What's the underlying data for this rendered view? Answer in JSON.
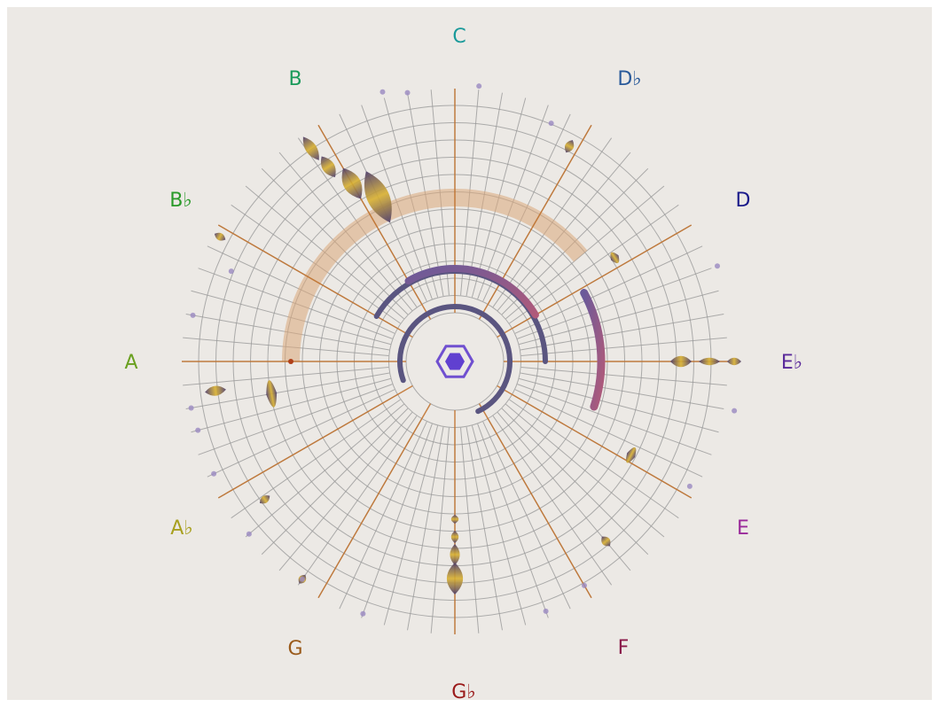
{
  "labels": [
    "C",
    "D♭",
    "D",
    "E♭",
    "E",
    "F",
    "G♭",
    "G",
    "A♭",
    "A",
    "B♭",
    "B"
  ]
}
